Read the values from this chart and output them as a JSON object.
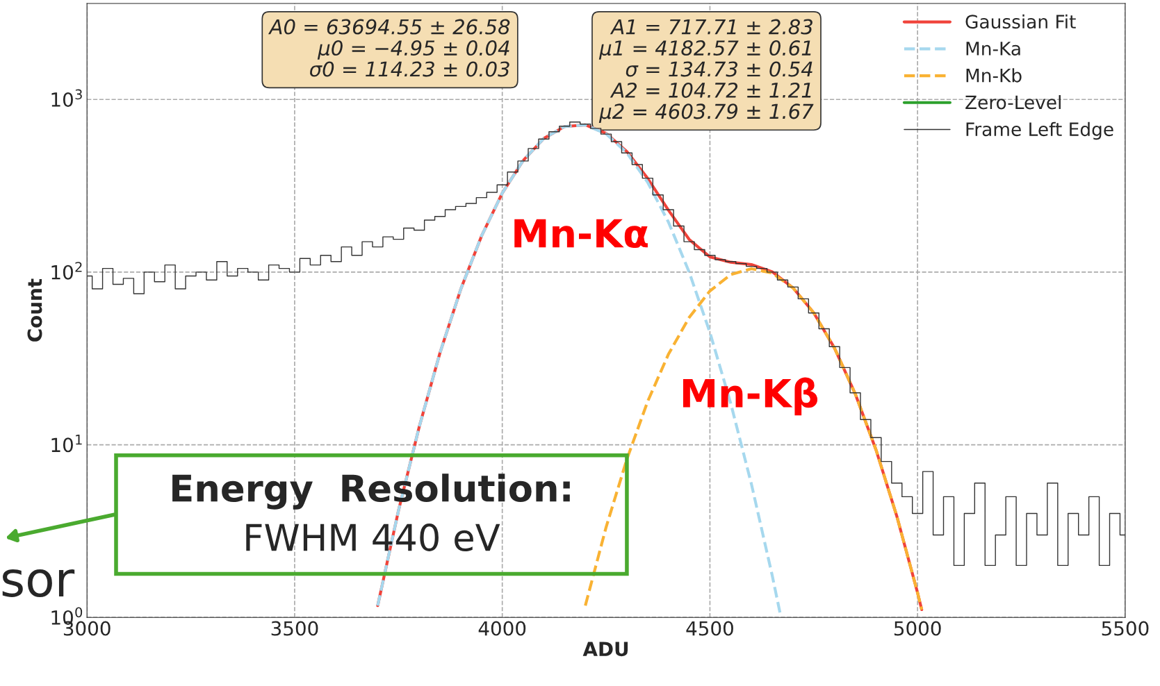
{
  "chart_data": {
    "type": "line",
    "xlabel": "ADU",
    "ylabel": "Count",
    "log": "y",
    "xlim": [
      3000,
      5500
    ],
    "xticks": [
      3000,
      3500,
      4000,
      4500,
      5000,
      5500
    ],
    "ylim": [
      1,
      3600
    ],
    "yticks": [
      {
        "value": 1,
        "label": "10$^{0}$"
      },
      {
        "value": 10,
        "label": "10$^{1}$"
      },
      {
        "value": 100,
        "label": "10$^{2}$"
      },
      {
        "value": 1000,
        "label": "10$^{3}$"
      }
    ],
    "grid": true,
    "legend": "top right",
    "series": [
      {
        "name": "Gaussian Fit",
        "color": "#f0433a",
        "line_style": "solid",
        "x": [
          3700,
          3750,
          3800,
          3850,
          3900,
          3950,
          4000,
          4050,
          4100,
          4150,
          4200,
          4250,
          4300,
          4350,
          4400,
          4450,
          4500,
          4550,
          4600,
          4650,
          4700,
          4750,
          4800,
          4850,
          4900,
          4950,
          5000,
          5010
        ],
        "values": [
          1.17,
          4.15,
          12.7,
          34.1,
          79.6,
          161.8,
          286.6,
          442.3,
          594.8,
          697.0,
          712.9,
          636.5,
          499.1,
          349.4,
          228.6,
          154.7,
          122.5,
          114.1,
          110.6,
          100.5,
          81.1,
          58.1,
          36.3,
          19.7,
          9.34,
          3.86,
          1.39,
          1.11
        ]
      },
      {
        "name": "Mn-Ka",
        "color": "#a6d8ee",
        "line_style": "dashed",
        "x": [
          3700,
          3750,
          3800,
          3850,
          3900,
          3950,
          4000,
          4050,
          4100,
          4150,
          4200,
          4250,
          4300,
          4350,
          4400,
          4450,
          4500,
          4550,
          4600,
          4650,
          4670
        ],
        "values": [
          1.17,
          4.15,
          12.7,
          34.1,
          79.6,
          161.8,
          286.6,
          442.3,
          594.8,
          697.0,
          711.7,
          633.2,
          490.9,
          331.6,
          195.2,
          100.1,
          44.7,
          17.4,
          5.91,
          1.75,
          1.03
        ]
      },
      {
        "name": "Mn-Kb",
        "color": "#f9b233",
        "line_style": "dashed",
        "x": [
          4200,
          4250,
          4300,
          4350,
          4400,
          4450,
          4500,
          4550,
          4600,
          4650,
          4700,
          4750,
          4800,
          4850,
          4900,
          4950,
          5000,
          5010
        ],
        "values": [
          1.17,
          3.33,
          8.24,
          17.8,
          33.4,
          54.6,
          77.8,
          96.7,
          104.7,
          98.7,
          81.1,
          58.1,
          36.3,
          19.7,
          9.34,
          3.86,
          1.39,
          1.11
        ]
      },
      {
        "name": "Zero-Level",
        "color": "#2ca02c",
        "line_style": "solid"
      },
      {
        "name": "Frame Left Edge",
        "type": "step",
        "color": "#333333",
        "line_style": "solid",
        "x": [
          3000,
          3025,
          3050,
          3075,
          3100,
          3125,
          3150,
          3175,
          3200,
          3225,
          3250,
          3275,
          3300,
          3325,
          3350,
          3375,
          3400,
          3425,
          3450,
          3475,
          3500,
          3525,
          3550,
          3575,
          3600,
          3625,
          3650,
          3675,
          3700,
          3725,
          3750,
          3775,
          3800,
          3825,
          3850,
          3875,
          3900,
          3925,
          3950,
          3975,
          4000,
          4025,
          4050,
          4075,
          4100,
          4125,
          4150,
          4175,
          4200,
          4225,
          4250,
          4275,
          4300,
          4325,
          4350,
          4375,
          4400,
          4425,
          4450,
          4475,
          4500,
          4525,
          4550,
          4575,
          4600,
          4625,
          4650,
          4675,
          4700,
          4725,
          4750,
          4775,
          4800,
          4825,
          4850,
          4875,
          4900,
          4925,
          4950,
          4975,
          5000,
          5025,
          5050,
          5075,
          5100,
          5125,
          5150,
          5175,
          5200,
          5225,
          5250,
          5275,
          5300,
          5325,
          5350,
          5375,
          5400,
          5425,
          5450,
          5475,
          5500
        ],
        "values": [
          95,
          80,
          105,
          85,
          92,
          75,
          100,
          88,
          110,
          80,
          95,
          100,
          90,
          115,
          95,
          105,
          100,
          90,
          110,
          105,
          100,
          120,
          110,
          125,
          115,
          140,
          125,
          150,
          140,
          160,
          155,
          180,
          175,
          200,
          210,
          230,
          240,
          250,
          270,
          290,
          320,
          380,
          440,
          520,
          590,
          650,
          700,
          740,
          720,
          680,
          630,
          570,
          490,
          420,
          350,
          280,
          230,
          185,
          150,
          135,
          125,
          118,
          115,
          112,
          108,
          105,
          100,
          90,
          82,
          70,
          58,
          47,
          37,
          28,
          20,
          14,
          11,
          8,
          6,
          5,
          4,
          7,
          3,
          5,
          2,
          4,
          6,
          2,
          3,
          5,
          2,
          4,
          3,
          6,
          2,
          4,
          3,
          5,
          2,
          4,
          3
        ]
      }
    ],
    "annotations": [
      "A0 = 63694.55 ± 26.58\nμ0 = −4.95 ± 0.04\nσ0 = 114.23 ± 0.03",
      "A1 = 717.71 ± 2.83\nμ1 = 4182.57 ± 0.61\nσ = 134.73 ± 0.54\nA2 = 104.72 ± 1.21\nμ2 = 4603.79 ± 1.67",
      "Mn-Kα",
      "Mn-Kβ",
      "Energy  Resolution:",
      "FWHM 440 eV",
      "sor"
    ]
  }
}
